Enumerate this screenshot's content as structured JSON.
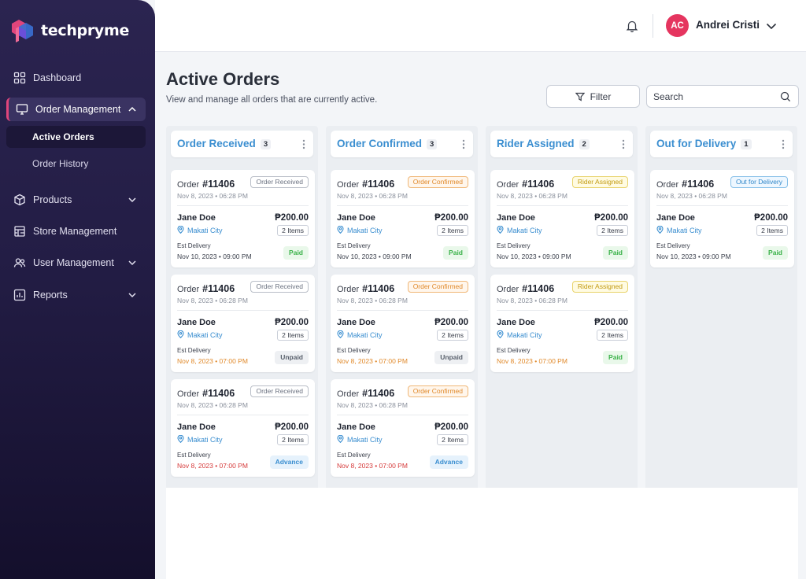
{
  "brand": {
    "name": "techpryme"
  },
  "nav": {
    "dashboard": "Dashboard",
    "order_management": "Order Management",
    "active_orders": "Active Orders",
    "order_history": "Order History",
    "products": "Products",
    "store_management": "Store Management",
    "user_management": "User Management",
    "reports": "Reports"
  },
  "header": {
    "avatar_initials": "AC",
    "user_name": "Andrei Cristi"
  },
  "page": {
    "title": "Active Orders",
    "subtitle": "View and manage all orders that are currently active.",
    "filter_label": "Filter",
    "search_placeholder": "Search"
  },
  "columns": [
    {
      "title": "Order Received",
      "count": "3",
      "cards": [
        {
          "order_label": "Order",
          "order_no": "#11406",
          "status": "Order Received",
          "date": "Nov 8, 2023  •  06:28 PM",
          "customer": "Jane Doe",
          "price": "₱200.00",
          "location": "Makati City",
          "items": "2 Items",
          "est_label": "Est Delivery",
          "est": "Nov 10, 2023  •  09:00 PM",
          "payment": "Paid"
        },
        {
          "order_label": "Order",
          "order_no": "#11406",
          "status": "Order Received",
          "date": "Nov 8, 2023  •  06:28 PM",
          "customer": "Jane Doe",
          "price": "₱200.00",
          "location": "Makati City",
          "items": "2 Items",
          "est_label": "Est Delivery",
          "est": "Nov 8, 2023  •  07:00 PM",
          "payment": "Unpaid"
        },
        {
          "order_label": "Order",
          "order_no": "#11406",
          "status": "Order Received",
          "date": "Nov 8, 2023  •  06:28 PM",
          "customer": "Jane Doe",
          "price": "₱200.00",
          "location": "Makati City",
          "items": "2 Items",
          "est_label": "Est Delivery",
          "est": "Nov 8, 2023  •  07:00 PM",
          "payment": "Advance"
        }
      ]
    },
    {
      "title": "Order Confirmed",
      "count": "3",
      "cards": [
        {
          "order_label": "Order",
          "order_no": "#11406",
          "status": "Order Confirmed",
          "date": "Nov 8, 2023  •  06:28 PM",
          "customer": "Jane Doe",
          "price": "₱200.00",
          "location": "Makati City",
          "items": "2 Items",
          "est_label": "Est Delivery",
          "est": "Nov 10, 2023  •  09:00 PM",
          "payment": "Paid"
        },
        {
          "order_label": "Order",
          "order_no": "#11406",
          "status": "Order Confirmed",
          "date": "Nov 8, 2023  •  06:28 PM",
          "customer": "Jane Doe",
          "price": "₱200.00",
          "location": "Makati City",
          "items": "2 Items",
          "est_label": "Est Delivery",
          "est": "Nov 8, 2023  •  07:00 PM",
          "payment": "Unpaid"
        },
        {
          "order_label": "Order",
          "order_no": "#11406",
          "status": "Order Confirmed",
          "date": "Nov 8, 2023  •  06:28 PM",
          "customer": "Jane Doe",
          "price": "₱200.00",
          "location": "Makati City",
          "items": "2 Items",
          "est_label": "Est Delivery",
          "est": "Nov 8, 2023  •  07:00 PM",
          "payment": "Advance"
        }
      ]
    },
    {
      "title": "Rider Assigned",
      "count": "2",
      "cards": [
        {
          "order_label": "Order",
          "order_no": "#11406",
          "status": "Rider Assigned",
          "date": "Nov 8, 2023  •  06:28 PM",
          "customer": "Jane Doe",
          "price": "₱200.00",
          "location": "Makati City",
          "items": "2 Items",
          "est_label": "Est Delivery",
          "est": "Nov 10, 2023  •  09:00 PM",
          "payment": "Paid"
        },
        {
          "order_label": "Order",
          "order_no": "#11406",
          "status": "Rider Assigned",
          "date": "Nov 8, 2023  •  06:28 PM",
          "customer": "Jane Doe",
          "price": "₱200.00",
          "location": "Makati City",
          "items": "2 Items",
          "est_label": "Est Delivery",
          "est": "Nov 8, 2023  •  07:00 PM",
          "payment": "Paid"
        }
      ]
    },
    {
      "title": "Out for Delivery",
      "count": "1",
      "cards": [
        {
          "order_label": "Order",
          "order_no": "#11406",
          "status": "Out for Delivery",
          "date": "Nov 8, 2023  •  06:28 PM",
          "customer": "Jane Doe",
          "price": "₱200.00",
          "location": "Makati City",
          "items": "2 Items",
          "est_label": "Est Delivery",
          "est": "Nov 10, 2023  •  09:00 PM",
          "payment": "Paid"
        }
      ]
    }
  ],
  "colors": {
    "accent_blue": "#3a8ed0",
    "brand_pink": "#e0457b",
    "avatar_red": "#e5355f",
    "sidebar_top": "#2b2450",
    "paid_green": "#3bb24a",
    "confirmed_orange": "#e0892a",
    "rider_yellow": "#c29a10",
    "late_red": "#d63a3a"
  }
}
